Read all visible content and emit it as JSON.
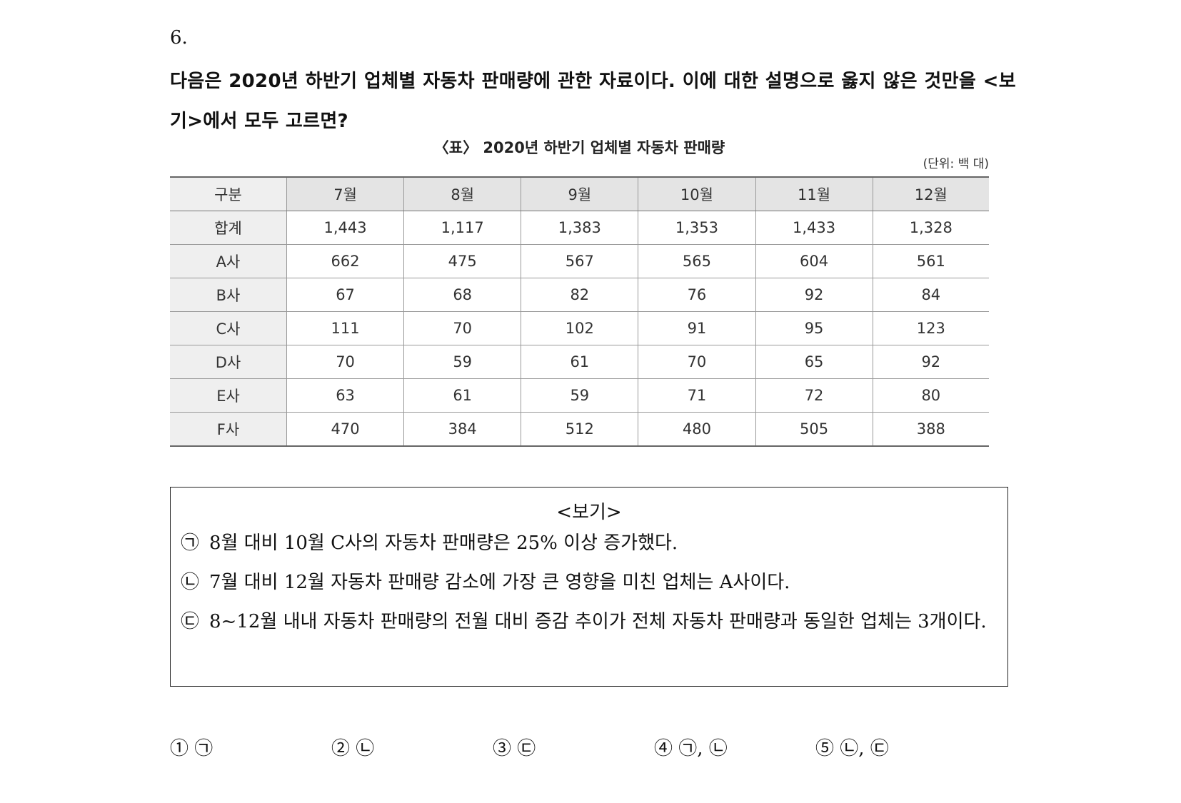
{
  "question": {
    "number": "6.",
    "text": "다음은 2020년 하반기 업체별 자동차 판매량에 관한 자료이다. 이에 대한 설명으로 옳지 않은 것만을 <보기>에서 모두 고르면?"
  },
  "table": {
    "title": "〈표〉 2020년 하반기 업체별 자동차 판매량",
    "unit": "(단위: 백 대)",
    "headers": [
      "구분",
      "7월",
      "8월",
      "9월",
      "10월",
      "11월",
      "12월"
    ],
    "rows": [
      {
        "label": "합계",
        "values": [
          "1,443",
          "1,117",
          "1,383",
          "1,353",
          "1,433",
          "1,328"
        ]
      },
      {
        "label": "A사",
        "values": [
          "662",
          "475",
          "567",
          "565",
          "604",
          "561"
        ]
      },
      {
        "label": "B사",
        "values": [
          "67",
          "68",
          "82",
          "76",
          "92",
          "84"
        ]
      },
      {
        "label": "C사",
        "values": [
          "111",
          "70",
          "102",
          "91",
          "95",
          "123"
        ]
      },
      {
        "label": "D사",
        "values": [
          "70",
          "59",
          "61",
          "70",
          "65",
          "92"
        ]
      },
      {
        "label": "E사",
        "values": [
          "63",
          "61",
          "59",
          "71",
          "72",
          "80"
        ]
      },
      {
        "label": "F사",
        "values": [
          "470",
          "384",
          "512",
          "480",
          "505",
          "388"
        ]
      }
    ]
  },
  "bogi": {
    "title": "<보기>",
    "items": [
      {
        "marker": "㉠",
        "text": "8월 대비 10월 C사의 자동차 판매량은 25% 이상 증가했다."
      },
      {
        "marker": "㉡",
        "text": "7월 대비 12월 자동차 판매량 감소에 가장 큰 영향을 미친 업체는 A사이다."
      },
      {
        "marker": "㉢",
        "text": "8~12월 내내 자동차 판매량의 전월 대비 증감 추이가 전체 자동차 판매량과 동일한 업체는 3개이다."
      }
    ]
  },
  "choices": [
    "① ㉠",
    "② ㉡",
    "③ ㉢",
    "④ ㉠, ㉡",
    "⑤ ㉡, ㉢"
  ]
}
